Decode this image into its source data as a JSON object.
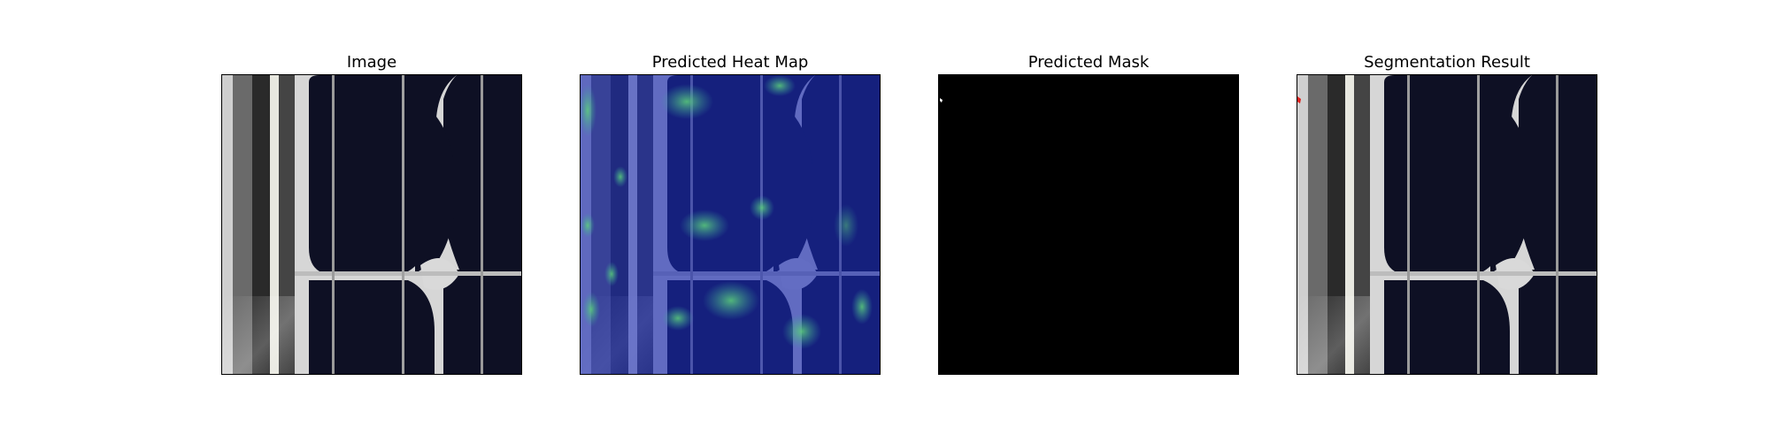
{
  "figure": {
    "panels": [
      {
        "title": "Image"
      },
      {
        "title": "Predicted Heat Map"
      },
      {
        "title": "Predicted Mask"
      },
      {
        "title": "Segmentation Result"
      }
    ]
  },
  "colors": {
    "cell_dark": "#0c0e1e",
    "busbar_light": "#d8d8d8",
    "frame_gray": "#bfbfbf",
    "heatmap_base": "#1a2ab4",
    "heatmap_hot": "#38a86e",
    "mask_black": "#000000",
    "segmentation_red": "#e0201c"
  }
}
